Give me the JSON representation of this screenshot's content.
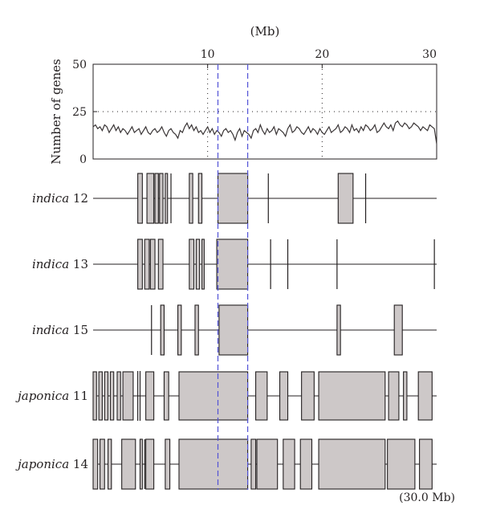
{
  "chart_data": [
    {
      "type": "line",
      "top_axis_unit": "(Mb)",
      "x_ticks": [
        10,
        20,
        30
      ],
      "xlim": [
        0,
        30
      ],
      "ylabel": "Number of genes",
      "y_ticks": [
        0,
        25,
        50
      ],
      "ylim": [
        0,
        50
      ],
      "grid": "dotted",
      "reference_x": [
        10,
        20
      ],
      "reference_y": 25,
      "series": [
        {
          "x": [
            0.0,
            0.2,
            0.4,
            0.6,
            0.8,
            1.0,
            1.2,
            1.4,
            1.6,
            1.8,
            2.0,
            2.2,
            2.4,
            2.6,
            2.8,
            3.0,
            3.2,
            3.4,
            3.6,
            3.8,
            4.0,
            4.2,
            4.4,
            4.6,
            4.8,
            5.0,
            5.2,
            5.4,
            5.6,
            5.8,
            6.0,
            6.2,
            6.4,
            6.6,
            6.8,
            7.0,
            7.2,
            7.4,
            7.6,
            7.8,
            8.0,
            8.2,
            8.4,
            8.6,
            8.8,
            9.0,
            9.2,
            9.4,
            9.6,
            9.8,
            10.0,
            10.2,
            10.4,
            10.6,
            10.8,
            11.0,
            11.2,
            11.4,
            11.6,
            11.8,
            12.0,
            12.2,
            12.4,
            12.6,
            12.8,
            13.0,
            13.2,
            13.4,
            13.6,
            13.8,
            14.0,
            14.2,
            14.4,
            14.6,
            14.8,
            15.0,
            15.2,
            15.4,
            15.6,
            15.8,
            16.0,
            16.2,
            16.4,
            16.6,
            16.8,
            17.0,
            17.2,
            17.4,
            17.6,
            17.8,
            18.0,
            18.2,
            18.4,
            18.6,
            18.8,
            19.0,
            19.2,
            19.4,
            19.6,
            19.8,
            20.0,
            20.2,
            20.4,
            20.6,
            20.8,
            21.0,
            21.2,
            21.4,
            21.6,
            21.8,
            22.0,
            22.2,
            22.4,
            22.6,
            22.8,
            23.0,
            23.2,
            23.4,
            23.6,
            23.8,
            24.0,
            24.2,
            24.4,
            24.6,
            24.8,
            25.0,
            25.2,
            25.4,
            25.6,
            25.8,
            26.0,
            26.2,
            26.4,
            26.6,
            26.8,
            27.0,
            27.2,
            27.4,
            27.6,
            27.8,
            28.0,
            28.2,
            28.4,
            28.6,
            28.8,
            29.0,
            29.2,
            29.4,
            29.6,
            29.8,
            30.0
          ],
          "values": [
            17,
            18,
            16,
            17,
            15,
            18,
            17,
            14,
            16,
            18,
            15,
            17,
            14,
            16,
            15,
            13,
            15,
            17,
            14,
            15,
            16,
            13,
            15,
            17,
            14,
            13,
            15,
            16,
            14,
            15,
            17,
            14,
            12,
            15,
            16,
            14,
            13,
            11,
            15,
            14,
            17,
            19,
            16,
            18,
            15,
            17,
            14,
            15,
            13,
            15,
            17,
            14,
            16,
            13,
            15,
            14,
            12,
            15,
            16,
            14,
            15,
            13,
            10,
            14,
            16,
            12,
            15,
            14,
            13,
            11,
            15,
            16,
            14,
            18,
            15,
            13,
            16,
            14,
            15,
            17,
            13,
            16,
            15,
            14,
            12,
            16,
            18,
            14,
            15,
            17,
            16,
            14,
            13,
            15,
            17,
            14,
            16,
            15,
            13,
            16,
            14,
            13,
            15,
            17,
            14,
            15,
            16,
            18,
            14,
            15,
            17,
            16,
            14,
            18,
            15,
            16,
            14,
            17,
            15,
            18,
            17,
            15,
            16,
            18,
            14,
            15,
            17,
            19,
            17,
            16,
            18,
            15,
            19,
            20,
            18,
            17,
            19,
            18,
            16,
            17,
            19,
            18,
            17,
            15,
            17,
            16,
            15,
            18,
            17,
            16,
            8
          ]
        }
      ]
    },
    {
      "type": "table",
      "size_label": "(30.0 Mb)",
      "xlim": [
        0,
        30
      ],
      "highlight_region": [
        10.9,
        13.5
      ],
      "tracks": [
        {
          "name": "indica",
          "chromosome": "12",
          "blocks": [
            [
              3.9,
              4.3
            ],
            [
              4.7,
              5.3
            ],
            [
              5.4,
              5.7
            ],
            [
              5.8,
              6.1
            ],
            [
              6.3,
              6.5
            ],
            [
              8.4,
              8.7
            ],
            [
              9.2,
              9.5
            ],
            [
              10.9,
              13.5
            ],
            [
              21.4,
              22.7
            ]
          ],
          "markers": [
            6.8,
            15.3,
            23.8
          ]
        },
        {
          "name": "indica",
          "chromosome": "13",
          "blocks": [
            [
              3.9,
              4.3
            ],
            [
              4.5,
              4.9
            ],
            [
              5.0,
              5.4
            ],
            [
              5.7,
              6.1
            ],
            [
              8.4,
              8.8
            ],
            [
              9.0,
              9.3
            ],
            [
              9.5,
              9.7
            ],
            [
              10.8,
              13.5
            ]
          ],
          "markers": [
            15.5,
            17.0,
            21.3,
            29.8
          ]
        },
        {
          "name": "indica",
          "chromosome": "15",
          "blocks": [
            [
              5.9,
              6.2
            ],
            [
              7.4,
              7.7
            ],
            [
              8.9,
              9.2
            ],
            [
              11.0,
              13.5
            ],
            [
              21.3,
              21.6
            ],
            [
              26.3,
              27.0
            ]
          ],
          "markers": [
            5.1
          ]
        },
        {
          "name": "japonica",
          "chromosome": "11",
          "blocks": [
            [
              0.0,
              0.3
            ],
            [
              0.5,
              0.8
            ],
            [
              1.0,
              1.3
            ],
            [
              1.5,
              1.8
            ],
            [
              2.1,
              2.4
            ],
            [
              2.6,
              3.5
            ],
            [
              4.6,
              5.3
            ],
            [
              6.2,
              6.6
            ],
            [
              7.5,
              13.5
            ],
            [
              14.2,
              15.2
            ],
            [
              16.3,
              17.0
            ],
            [
              18.2,
              19.3
            ],
            [
              19.7,
              25.5
            ],
            [
              25.8,
              26.7
            ],
            [
              27.1,
              27.4
            ],
            [
              28.4,
              29.6
            ]
          ],
          "markers": [
            3.9,
            4.1
          ]
        },
        {
          "name": "japonica",
          "chromosome": "14",
          "blocks": [
            [
              0.0,
              0.4
            ],
            [
              0.6,
              1.0
            ],
            [
              1.3,
              1.6
            ],
            [
              2.5,
              3.7
            ],
            [
              4.1,
              4.3
            ],
            [
              4.6,
              5.3
            ],
            [
              6.3,
              6.7
            ],
            [
              7.5,
              13.5
            ],
            [
              13.8,
              14.2
            ],
            [
              14.3,
              16.1
            ],
            [
              16.6,
              17.6
            ],
            [
              18.1,
              19.1
            ],
            [
              19.7,
              25.5
            ],
            [
              25.7,
              28.1
            ],
            [
              28.5,
              29.6
            ]
          ],
          "markers": [
            4.5
          ]
        }
      ]
    }
  ]
}
